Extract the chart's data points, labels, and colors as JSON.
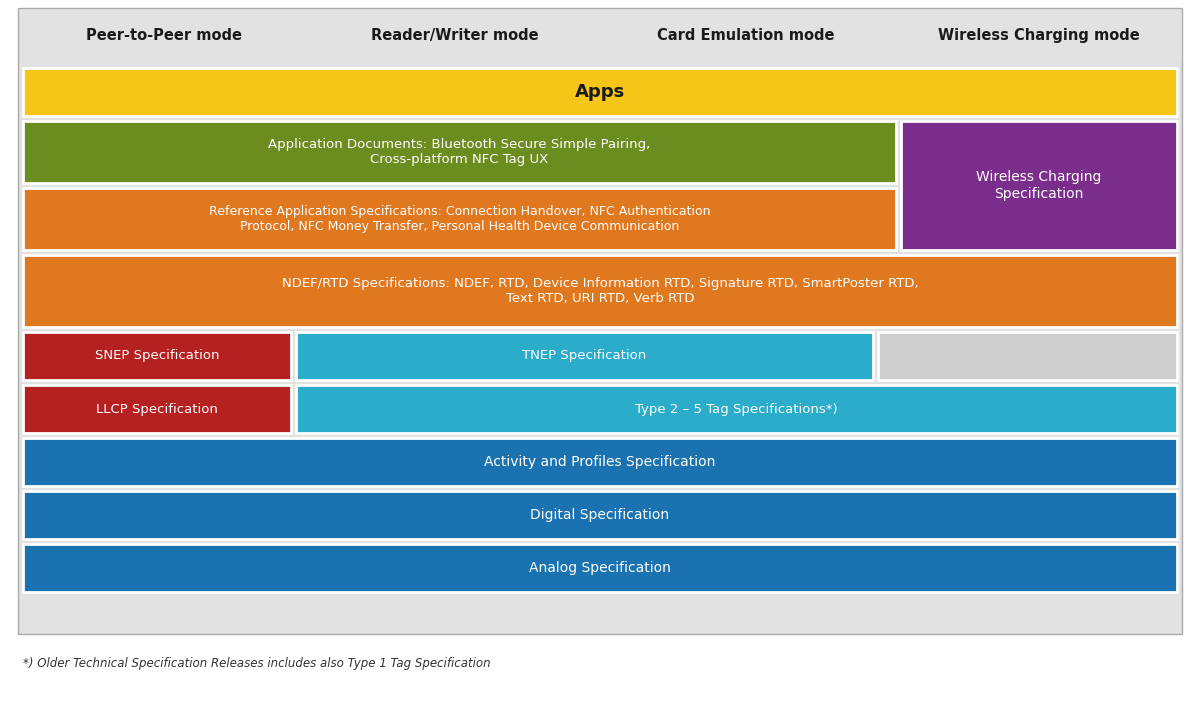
{
  "colors": {
    "yellow": "#F5C518",
    "green": "#6B8C1F",
    "orange": "#E07820",
    "purple": "#7B2D8B",
    "red": "#B52020",
    "teal": "#2AACCA",
    "blue": "#1A72B0",
    "gray_bg": "#E2E2E2",
    "gray_box": "#CECECE",
    "white": "#FFFFFF",
    "dark_text": "#1A1A1A"
  },
  "header_labels": [
    "Peer-to-Peer mode",
    "Reader/Writer mode",
    "Card Emulation mode",
    "Wireless Charging mode"
  ],
  "footnote": "*) Older Technical Specification Releases includes also Type 1 Tag Specification"
}
